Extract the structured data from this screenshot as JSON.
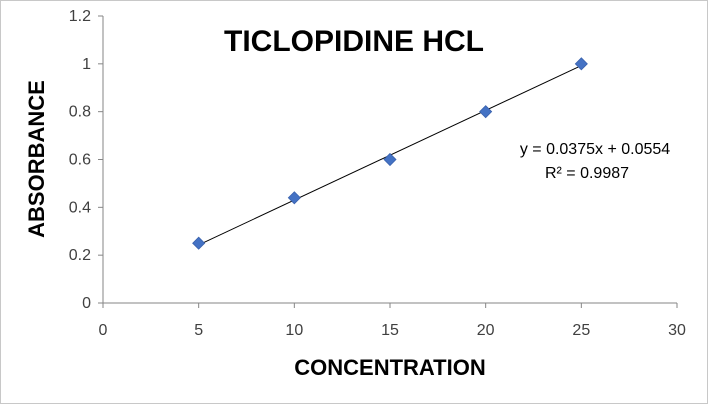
{
  "chart_data": {
    "type": "scatter",
    "title": "TICLOPIDINE HCL",
    "xlabel": "CONCENTRATION",
    "ylabel": "ABSORBANCE",
    "xlim": [
      0,
      30
    ],
    "ylim": [
      0,
      1.2
    ],
    "xticks": [
      "0",
      "5",
      "10",
      "15",
      "20",
      "25",
      "30"
    ],
    "yticks": [
      "0",
      "0.2",
      "0.4",
      "0.6",
      "0.8",
      "1",
      "1.2"
    ],
    "grid": false,
    "legend": "none",
    "series": [
      {
        "x": [
          5,
          10,
          15,
          20,
          25
        ],
        "y": [
          0.25,
          0.44,
          0.6,
          0.8,
          1.0
        ],
        "marker": "diamond",
        "color": "#4472C4"
      }
    ],
    "trendline": {
      "type": "linear",
      "slope": 0.0375,
      "intercept": 0.0554,
      "x_range": [
        5,
        25
      ],
      "color": "#000000"
    },
    "annotations": {
      "equation": "y = 0.0375x + 0.0554",
      "r_squared": "R² = 0.9987"
    }
  }
}
